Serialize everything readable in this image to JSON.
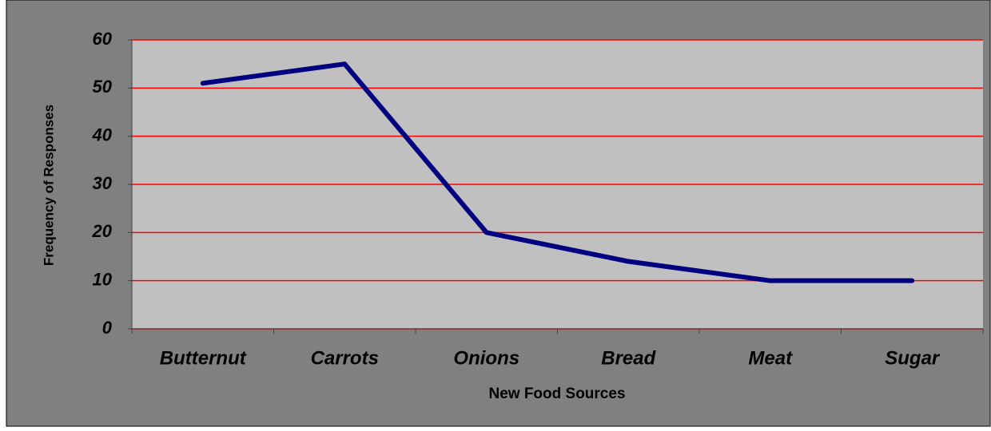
{
  "chart_data": {
    "type": "line",
    "x_label": "New Food Sources",
    "y_label": "Frequency of Responses",
    "categories": [
      "Butternut",
      "Carrots",
      "Onions",
      "Bread",
      "Meat",
      "Sugar"
    ],
    "series": [
      {
        "name": "Frequency of Responses",
        "color": "#000080",
        "values": [
          51,
          55,
          20,
          14,
          10,
          10
        ]
      }
    ],
    "ylim": [
      0,
      60
    ],
    "yticks": [
      0,
      10,
      20,
      30,
      40,
      50,
      60
    ],
    "grid": true,
    "grid_color": "#ff0000"
  }
}
